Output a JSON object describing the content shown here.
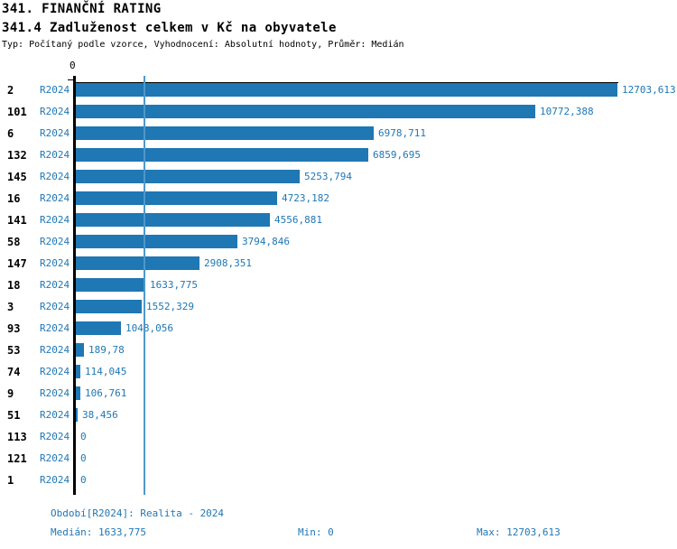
{
  "header": {
    "title": "341. FINANČNÍ RATING",
    "subtitle": "341.4 Zadluženost celkem v Kč na obyvatele",
    "meta": "Typ: Počítaný podle vzorce, Vyhodnocení: Absolutní hodnoty, Průměr: Medián"
  },
  "axis": {
    "zero_label": "0"
  },
  "rows": [
    {
      "category": "2",
      "period": "R2024",
      "value": 12703.613,
      "value_label": "12703,613"
    },
    {
      "category": "101",
      "period": "R2024",
      "value": 10772.388,
      "value_label": "10772,388"
    },
    {
      "category": "6",
      "period": "R2024",
      "value": 6978.711,
      "value_label": "6978,711"
    },
    {
      "category": "132",
      "period": "R2024",
      "value": 6859.695,
      "value_label": "6859,695"
    },
    {
      "category": "145",
      "period": "R2024",
      "value": 5253.794,
      "value_label": "5253,794"
    },
    {
      "category": "16",
      "period": "R2024",
      "value": 4723.182,
      "value_label": "4723,182"
    },
    {
      "category": "141",
      "period": "R2024",
      "value": 4556.881,
      "value_label": "4556,881"
    },
    {
      "category": "58",
      "period": "R2024",
      "value": 3794.846,
      "value_label": "3794,846"
    },
    {
      "category": "147",
      "period": "R2024",
      "value": 2908.351,
      "value_label": "2908,351"
    },
    {
      "category": "18",
      "period": "R2024",
      "value": 1633.775,
      "value_label": "1633,775"
    },
    {
      "category": "3",
      "period": "R2024",
      "value": 1552.329,
      "value_label": "1552,329"
    },
    {
      "category": "93",
      "period": "R2024",
      "value": 1048.056,
      "value_label": "1048,056"
    },
    {
      "category": "53",
      "period": "R2024",
      "value": 189.78,
      "value_label": "189,78"
    },
    {
      "category": "74",
      "period": "R2024",
      "value": 114.045,
      "value_label": "114,045"
    },
    {
      "category": "9",
      "period": "R2024",
      "value": 106.761,
      "value_label": "106,761"
    },
    {
      "category": "51",
      "period": "R2024",
      "value": 38.456,
      "value_label": "38,456"
    },
    {
      "category": "113",
      "period": "R2024",
      "value": 0,
      "value_label": "0"
    },
    {
      "category": "121",
      "period": "R2024",
      "value": 0,
      "value_label": "0"
    },
    {
      "category": "1",
      "period": "R2024",
      "value": 0,
      "value_label": "0"
    }
  ],
  "footer": {
    "period_info": "Období[R2024]: Realita - 2024",
    "median": "Medián: 1633,775",
    "min": "Min: 0",
    "max": "Max: 12703,613"
  },
  "colors": {
    "bar": "#1f77b4",
    "label_blue": "#1f77b4",
    "median_line": "#4f98cb",
    "axis": "#000000",
    "background": "#ffffff"
  },
  "chart_data": {
    "type": "bar",
    "orientation": "horizontal",
    "title": "341.4 Zadluženost celkem v Kč na obyvatele",
    "xlabel": "",
    "ylabel": "",
    "categories": [
      "2",
      "101",
      "6",
      "132",
      "145",
      "16",
      "141",
      "58",
      "147",
      "18",
      "3",
      "93",
      "53",
      "74",
      "9",
      "51",
      "113",
      "121",
      "1"
    ],
    "series": [
      {
        "name": "R2024",
        "values": [
          12703.613,
          10772.388,
          6978.711,
          6859.695,
          5253.794,
          4723.182,
          4556.881,
          3794.846,
          2908.351,
          1633.775,
          1552.329,
          1048.056,
          189.78,
          114.045,
          106.761,
          38.456,
          0,
          0,
          0
        ]
      }
    ],
    "xlim": [
      0,
      12703.613
    ],
    "x_ticks": [
      0
    ],
    "median": 1633.775,
    "min": 0,
    "max": 12703.613,
    "legend_position": "none",
    "gridlines": "median-line-only"
  }
}
